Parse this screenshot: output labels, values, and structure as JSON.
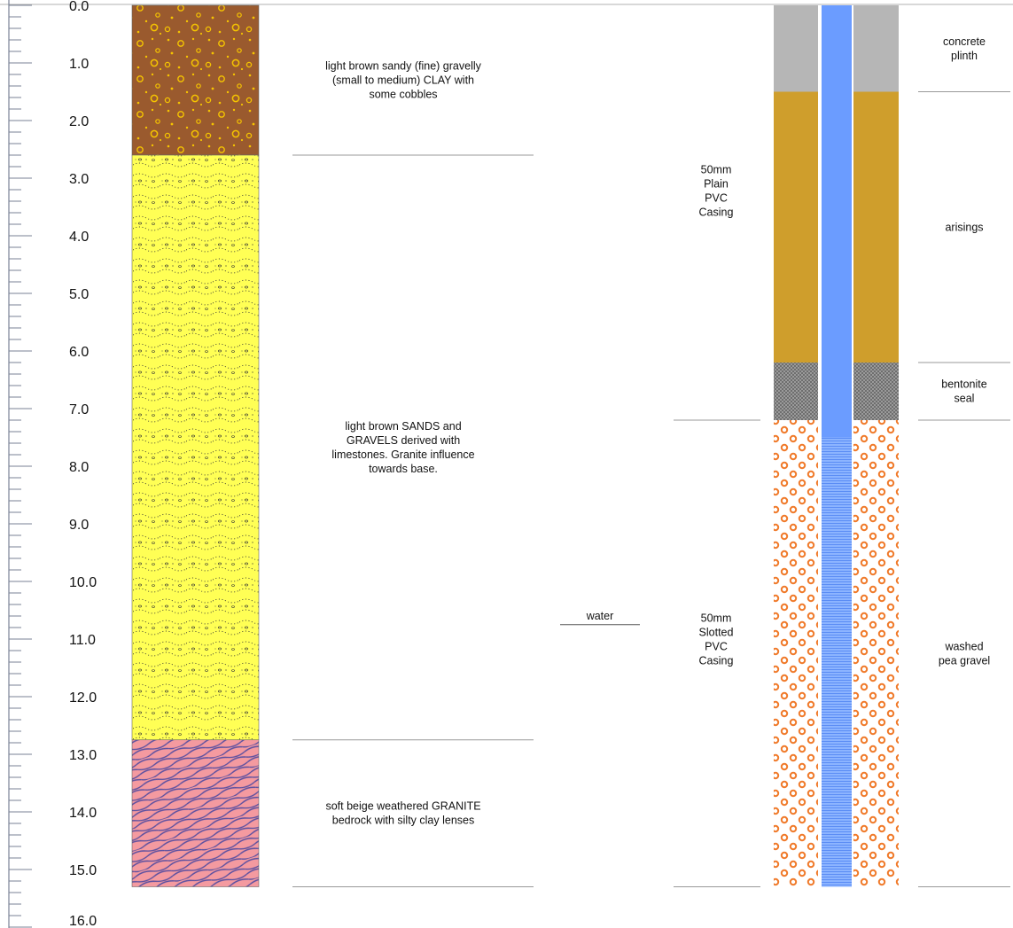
{
  "depth_axis": {
    "ticks": [
      "0.0",
      "1.0",
      "2.0",
      "3.0",
      "4.0",
      "5.0",
      "6.0",
      "7.0",
      "8.0",
      "9.0",
      "10.0",
      "11.0",
      "12.0",
      "13.0",
      "14.0",
      "15.0",
      "16.0"
    ]
  },
  "strata": [
    {
      "id": "clay",
      "top": 0.0,
      "base": 2.6,
      "fill": "#9a5a2e",
      "pattern": "cobbles",
      "description": [
        "light brown sandy (fine) gravelly",
        "(small to medium) CLAY with",
        "some cobbles"
      ]
    },
    {
      "id": "sands",
      "top": 2.6,
      "base": 12.75,
      "fill": "#ffff55",
      "pattern": "sand-gravel",
      "description": [
        "light brown SANDS and",
        "GRAVELS derived with",
        "limestones.  Granite influence",
        "towards base."
      ]
    },
    {
      "id": "granite",
      "top": 12.75,
      "base": 15.3,
      "fill": "#f49aa0",
      "pattern": "granite",
      "description": [
        "soft beige weathered GRANITE",
        "bedrock with silty clay lenses"
      ]
    }
  ],
  "water": {
    "depth": 10.75,
    "label": "water"
  },
  "casing": [
    {
      "id": "plain",
      "top": 0.0,
      "base": 7.5,
      "fill": "#6b9cff",
      "label": [
        "50mm",
        "Plain",
        "PVC",
        "Casing"
      ]
    },
    {
      "id": "slotted",
      "top": 7.5,
      "base": 15.3,
      "fill": "#6b9cff",
      "label": [
        "50mm",
        "Slotted",
        "PVC",
        "Casing"
      ]
    }
  ],
  "annulus": [
    {
      "id": "plinth",
      "top": 0.0,
      "base": 1.5,
      "fill": "#b6b6b6",
      "label": [
        "concrete",
        "plinth"
      ]
    },
    {
      "id": "arisings",
      "top": 1.5,
      "base": 6.2,
      "fill": "#cf9e2c",
      "label": [
        "arisings"
      ]
    },
    {
      "id": "bentonite",
      "top": 6.2,
      "base": 7.2,
      "fill": "#8a8a8a",
      "label": [
        "bentonite",
        "seal"
      ]
    },
    {
      "id": "gravel",
      "top": 7.2,
      "base": 15.3,
      "fill": "#ffffff",
      "label": [
        "washed",
        "pea gravel"
      ]
    }
  ],
  "colors": {
    "tick": "#7a8296",
    "line": "#999999",
    "gravel_ring": "#f07a2a"
  }
}
